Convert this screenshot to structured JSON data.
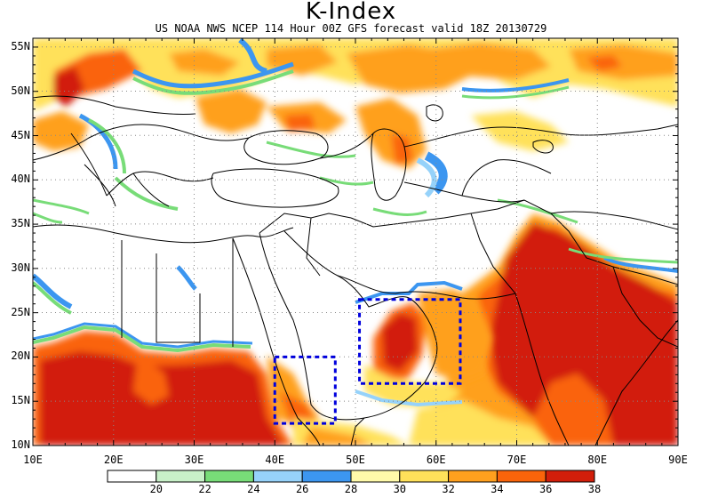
{
  "title": "K-Index",
  "subtitle": "US NOAA NWS NCEP 114 Hour 00Z GFS forecast valid 18Z 20130729",
  "lat_labels": [
    "55N",
    "50N",
    "45N",
    "40N",
    "35N",
    "30N",
    "25N",
    "20N",
    "15N",
    "10N"
  ],
  "lon_labels": [
    "10E",
    "20E",
    "30E",
    "40E",
    "50E",
    "60E",
    "70E",
    "80E",
    "90E"
  ],
  "legend": {
    "ticks": [
      "20",
      "22",
      "24",
      "26",
      "28",
      "30",
      "32",
      "34",
      "36",
      "38"
    ],
    "colors": [
      "#ffffff",
      "#c8f0c8",
      "#78dc78",
      "#96d2fa",
      "#3c96f0",
      "#fffaaa",
      "#ffe15a",
      "#ffa01e",
      "#fa640a",
      "#d21e0a"
    ]
  },
  "map_extent": {
    "lon": [
      10,
      90
    ],
    "lat": [
      10,
      56
    ]
  },
  "highlight_boxes": [
    {
      "lon": [
        40,
        47.5
      ],
      "lat": [
        12.5,
        20
      ]
    },
    {
      "lon": [
        50.5,
        63
      ],
      "lat": [
        17,
        26.5
      ]
    }
  ],
  "box_color": "#0000dd"
}
